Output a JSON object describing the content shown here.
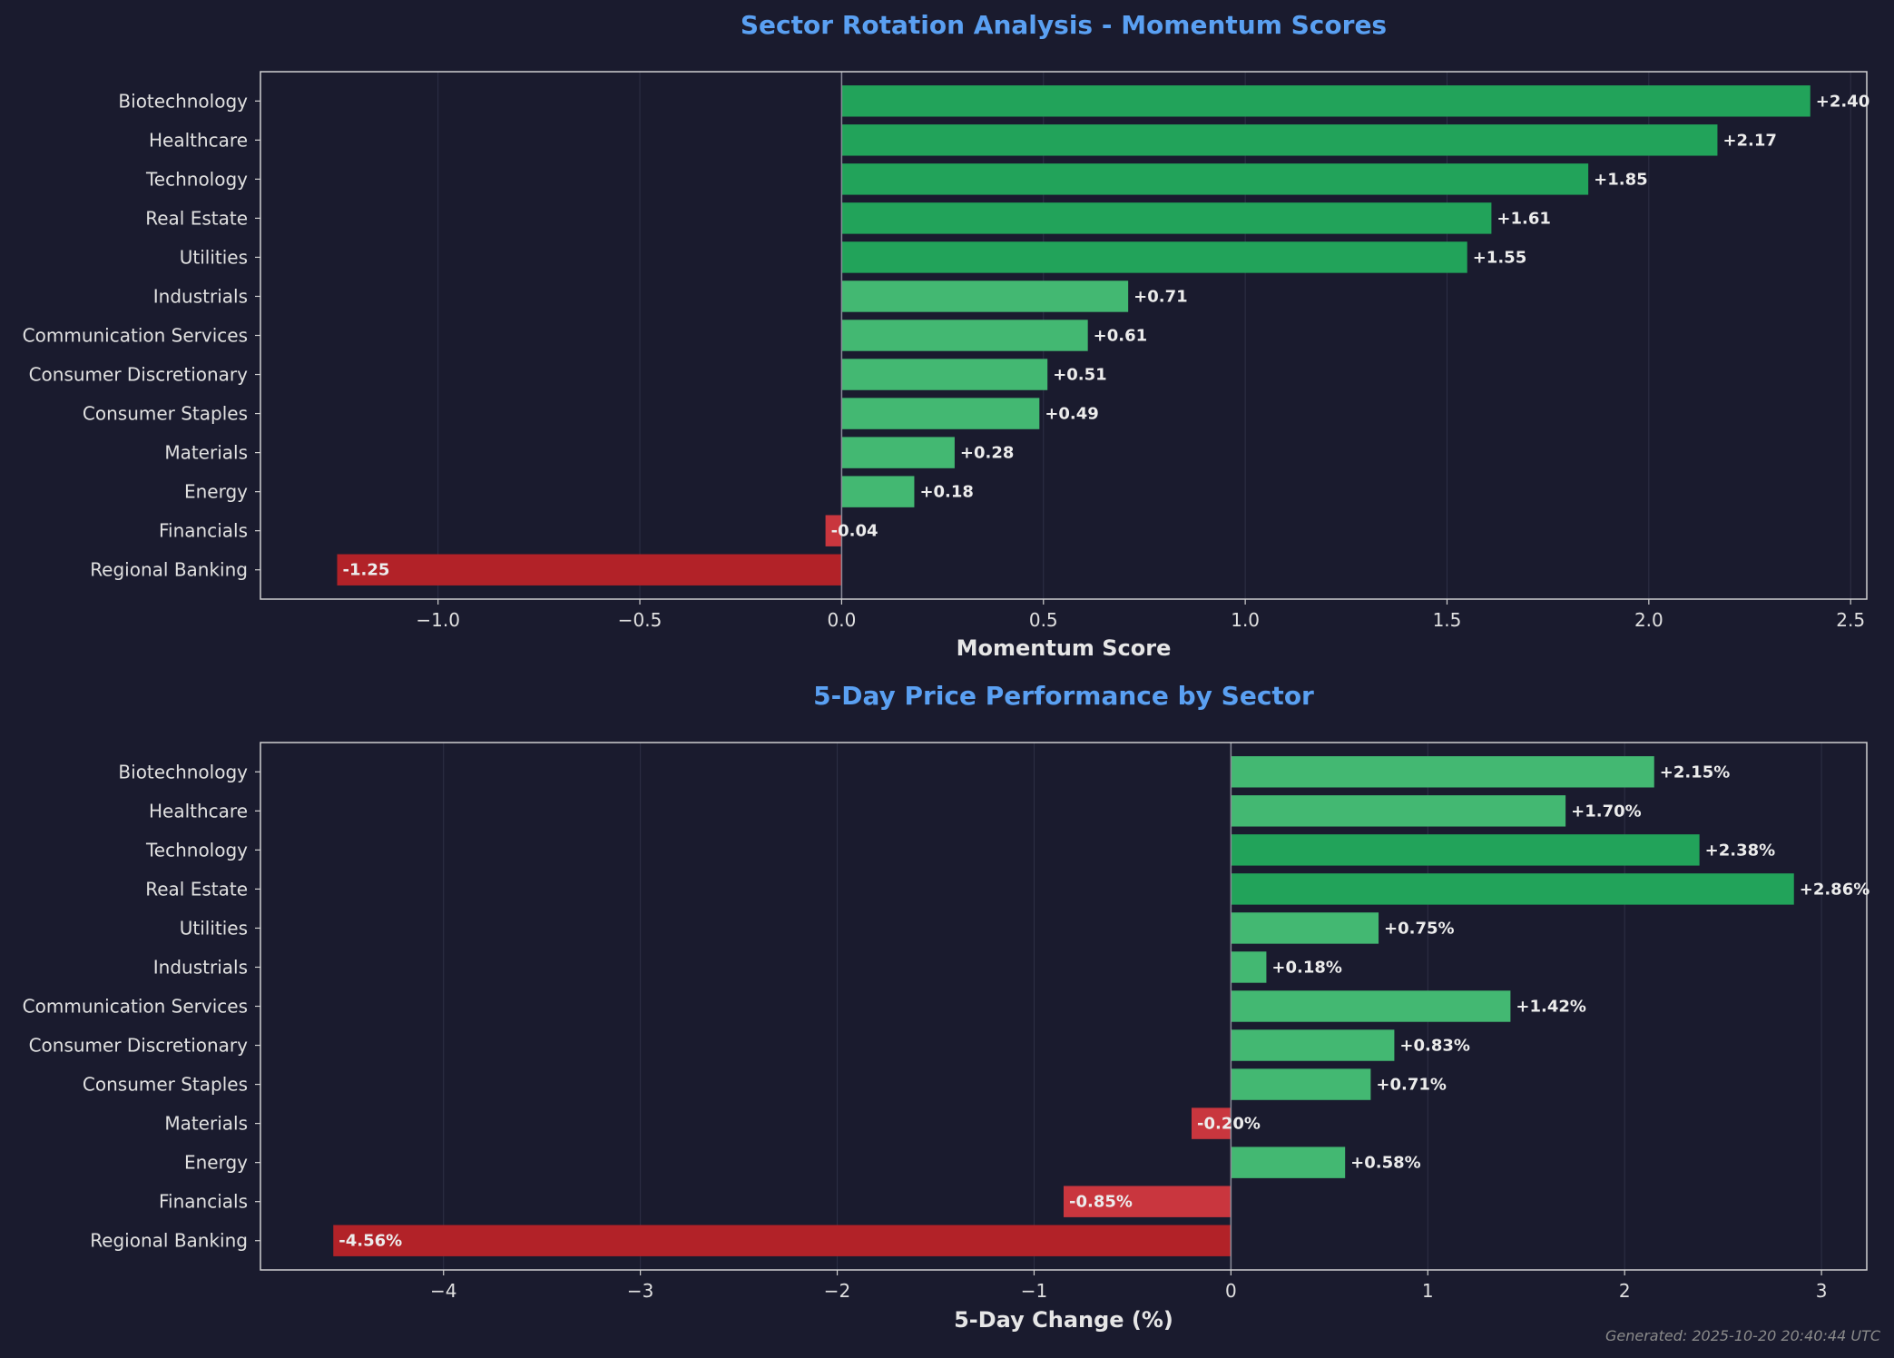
{
  "chart_data": [
    {
      "type": "bar",
      "orientation": "horizontal",
      "title": "Sector Rotation Analysis - Momentum Scores",
      "xlabel": "Momentum Score",
      "categories": [
        "Biotechnology",
        "Healthcare",
        "Technology",
        "Real Estate",
        "Utilities",
        "Industrials",
        "Communication Services",
        "Consumer Discretionary",
        "Consumer Staples",
        "Materials",
        "Energy",
        "Financials",
        "Regional Banking"
      ],
      "values": [
        2.4,
        2.17,
        1.85,
        1.61,
        1.55,
        0.71,
        0.61,
        0.51,
        0.49,
        0.28,
        0.18,
        -0.04,
        -1.25
      ],
      "data_labels": [
        "+2.40",
        "+2.17",
        "+1.85",
        "+1.61",
        "+1.55",
        "+0.71",
        "+0.61",
        "+0.51",
        "+0.49",
        "+0.28",
        "+0.18",
        "-0.04",
        "-1.25"
      ],
      "xlim": [
        -1.44,
        2.54
      ],
      "xticks": [
        -1.0,
        -0.5,
        0.0,
        0.5,
        1.0,
        1.5,
        2.0,
        2.5
      ],
      "xtick_labels": [
        "−1.0",
        "−0.5",
        "0.0",
        "0.5",
        "1.0",
        "1.5",
        "2.0",
        "2.5"
      ],
      "grid": true
    },
    {
      "type": "bar",
      "orientation": "horizontal",
      "title": "5-Day Price Performance by Sector",
      "xlabel": "5-Day Change (%)",
      "categories": [
        "Biotechnology",
        "Healthcare",
        "Technology",
        "Real Estate",
        "Utilities",
        "Industrials",
        "Communication Services",
        "Consumer Discretionary",
        "Consumer Staples",
        "Materials",
        "Energy",
        "Financials",
        "Regional Banking"
      ],
      "values": [
        2.15,
        1.7,
        2.38,
        2.86,
        0.75,
        0.18,
        1.42,
        0.83,
        0.71,
        -0.2,
        0.58,
        -0.85,
        -4.56
      ],
      "data_labels": [
        "+2.15%",
        "+1.70%",
        "+2.38%",
        "+2.86%",
        "+0.75%",
        "+0.18%",
        "+1.42%",
        "+0.83%",
        "+0.71%",
        "-0.20%",
        "+0.58%",
        "-0.85%",
        "-4.56%"
      ],
      "xlim": [
        -4.93,
        3.23
      ],
      "xticks": [
        -4,
        -3,
        -2,
        -1,
        0,
        1,
        2,
        3
      ],
      "xtick_labels": [
        "−4",
        "−3",
        "−2",
        "−1",
        "0",
        "1",
        "2",
        "3"
      ],
      "grid": true
    }
  ],
  "colors": {
    "background": "#1a1b2e",
    "strong_positive": "#22a35a",
    "positive": "#43b872",
    "strong_negative": "#b22228",
    "negative": "#c9363e",
    "title": "#5aa0f2"
  },
  "footer": "Generated: 2025-10-20 20:40:44 UTC"
}
